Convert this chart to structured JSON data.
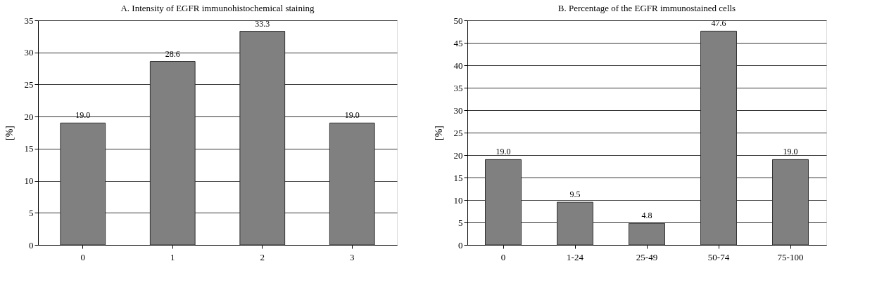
{
  "chart_data": [
    {
      "type": "bar",
      "title": "A. Intensity of EGFR immunohistochemical staining",
      "ylabel": "[%]",
      "categories": [
        "0",
        "1",
        "2",
        "3"
      ],
      "values": [
        19.0,
        28.6,
        33.3,
        19.0
      ],
      "value_labels": [
        "19.0",
        "28.6",
        "33.3",
        "19.0"
      ],
      "color": "#808080",
      "ylim": [
        0,
        35
      ],
      "yticks": [
        0,
        5,
        10,
        15,
        20,
        25,
        30,
        35
      ],
      "grid": "y"
    },
    {
      "type": "bar",
      "title": "B. Percentage of the EGFR immunostained cells",
      "ylabel": "[%]",
      "categories": [
        "0",
        "1-24",
        "25-49",
        "50-74",
        "75-100"
      ],
      "values": [
        19.0,
        9.5,
        4.8,
        47.6,
        19.0
      ],
      "value_labels": [
        "19.0",
        "9.5",
        "4.8",
        "47.6",
        "19.0"
      ],
      "color": "#808080",
      "ylim": [
        0,
        50
      ],
      "yticks": [
        0,
        5,
        10,
        15,
        20,
        25,
        30,
        35,
        40,
        45,
        50
      ],
      "grid": "y"
    }
  ]
}
